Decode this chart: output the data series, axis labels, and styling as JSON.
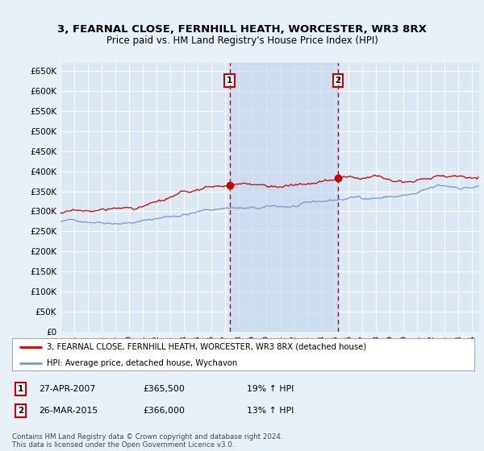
{
  "title": "3, FEARNAL CLOSE, FERNHILL HEATH, WORCESTER, WR3 8RX",
  "subtitle": "Price paid vs. HM Land Registry's House Price Index (HPI)",
  "ylim": [
    0,
    670000
  ],
  "yticks": [
    0,
    50000,
    100000,
    150000,
    200000,
    250000,
    300000,
    350000,
    400000,
    450000,
    500000,
    550000,
    600000,
    650000
  ],
  "ytick_labels": [
    "£0",
    "£50K",
    "£100K",
    "£150K",
    "£200K",
    "£250K",
    "£300K",
    "£350K",
    "£400K",
    "£450K",
    "£500K",
    "£550K",
    "£600K",
    "£650K"
  ],
  "bg_color": "#e8f0f8",
  "plot_bg_color": "#dde8f5",
  "grid_color": "#ffffff",
  "shade_color": "#c8d8ee",
  "red_line_color": "#cc0000",
  "blue_line_color": "#7799cc",
  "vline_color": "#cc0000",
  "marker1_x": 2007.32,
  "marker2_x": 2015.23,
  "legend_label1": "3, FEARNAL CLOSE, FERNHILL HEATH, WORCESTER, WR3 8RX (detached house)",
  "legend_label2": "HPI: Average price, detached house, Wychavon",
  "table_row1": [
    "1",
    "27-APR-2007",
    "£365,500",
    "19% ↑ HPI"
  ],
  "table_row2": [
    "2",
    "26-MAR-2015",
    "£366,000",
    "13% ↑ HPI"
  ],
  "footer": "Contains HM Land Registry data © Crown copyright and database right 2024.\nThis data is licensed under the Open Government Licence v3.0.",
  "xmin": 1995.0,
  "xmax": 2025.5
}
